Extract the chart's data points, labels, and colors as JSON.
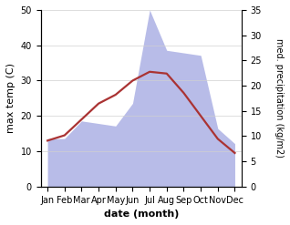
{
  "months": [
    "Jan",
    "Feb",
    "Mar",
    "Apr",
    "May",
    "Jun",
    "Jul",
    "Aug",
    "Sep",
    "Oct",
    "Nov",
    "Dec"
  ],
  "max_temp": [
    13.0,
    14.5,
    19.0,
    23.5,
    26.0,
    30.0,
    32.5,
    32.0,
    26.5,
    20.0,
    13.5,
    9.5
  ],
  "precipitation": [
    9.5,
    9.5,
    13.0,
    12.5,
    12.0,
    16.5,
    35.0,
    27.0,
    26.5,
    26.0,
    11.5,
    8.5
  ],
  "temp_color": "#aa3333",
  "precip_fill_color": "#b8bce8",
  "ylim_left": [
    0,
    50
  ],
  "ylim_right": [
    0,
    35
  ],
  "ylabel_left": "max temp (C)",
  "ylabel_right": "med. precipitation (kg/m2)",
  "xlabel": "date (month)",
  "label_fontsize": 8,
  "tick_fontsize": 7,
  "linewidth": 1.6,
  "bg_color": "#ffffff"
}
